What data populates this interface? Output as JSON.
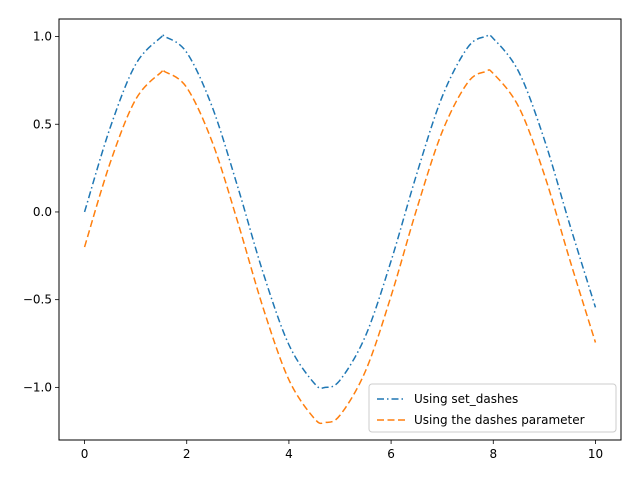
{
  "chart_data": {
    "type": "line",
    "title": "",
    "xlabel": "",
    "ylabel": "",
    "xlim": [
      -0.5,
      10.5
    ],
    "ylim": [
      -1.3,
      1.1
    ],
    "xticks": [
      0,
      2,
      4,
      6,
      8,
      10
    ],
    "xtick_labels": [
      "0",
      "2",
      "4",
      "6",
      "8",
      "10"
    ],
    "yticks": [
      -1.0,
      -0.5,
      0.0,
      0.5,
      1.0
    ],
    "ytick_labels": [
      "−1.0",
      "−0.5",
      "0.0",
      "0.5",
      "1.0"
    ],
    "grid": false,
    "legend_position": "lower-right",
    "x": [
      0,
      0.5,
      1,
      1.5,
      1.57,
      2,
      2.5,
      3,
      3.5,
      4,
      4.5,
      4.71,
      5,
      5.5,
      6,
      6.5,
      7,
      7.5,
      7.85,
      8,
      8.5,
      9,
      9.5,
      10
    ],
    "series": [
      {
        "name": "Using set_dashes",
        "color": "#1f77b4",
        "dash": "dash-dot",
        "values": [
          0.0,
          0.479,
          0.841,
          0.997,
          1.0,
          0.909,
          0.598,
          0.141,
          -0.351,
          -0.757,
          -0.978,
          -1.0,
          -0.959,
          -0.706,
          -0.279,
          0.215,
          0.657,
          0.938,
          1.0,
          0.989,
          0.798,
          0.412,
          -0.075,
          -0.544
        ]
      },
      {
        "name": "Using the dashes parameter",
        "color": "#ff7f0e",
        "dash": "dashed",
        "values": [
          -0.2,
          0.279,
          0.641,
          0.797,
          0.8,
          0.709,
          0.398,
          -0.059,
          -0.551,
          -0.957,
          -1.178,
          -1.2,
          -1.159,
          -0.906,
          -0.479,
          0.015,
          0.457,
          0.738,
          0.8,
          0.789,
          0.598,
          0.212,
          -0.275,
          -0.744
        ]
      }
    ]
  }
}
